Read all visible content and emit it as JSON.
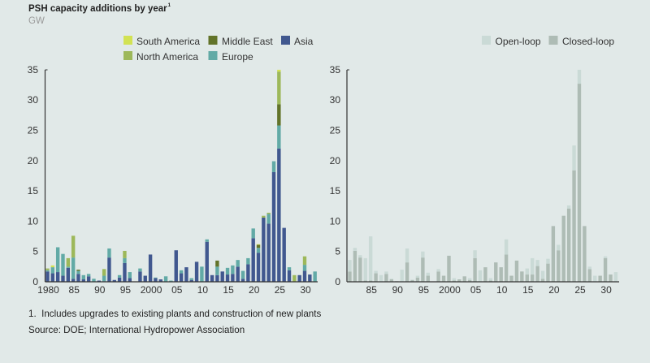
{
  "title_marker": "1",
  "colors": {
    "background": "#e1e9e8",
    "axis": "#333333"
  },
  "notes": {
    "footnote": "1.  Includes upgrades to existing plants and construction of new plants",
    "source": "Source: DOE; International Hydropower Association"
  },
  "chart_data": [
    {
      "type": "bar",
      "stacked": true,
      "title": "PSH capacity additions by year",
      "ylabel": "GW",
      "ylim": [
        0,
        35
      ],
      "yticks": [
        0,
        5,
        10,
        15,
        20,
        25,
        30,
        35
      ],
      "xticks": [
        1980,
        1985,
        1990,
        1995,
        2000,
        2005,
        2010,
        2015,
        2020,
        2025,
        2030
      ],
      "xtick_labels": [
        "1980",
        "85",
        "90",
        "95",
        "2000",
        "05",
        "10",
        "15",
        "20",
        "25",
        "30"
      ],
      "legend_position": "top-right",
      "x": [
        1980,
        1981,
        1982,
        1983,
        1984,
        1985,
        1986,
        1987,
        1988,
        1989,
        1990,
        1991,
        1992,
        1993,
        1994,
        1995,
        1996,
        1997,
        1998,
        1999,
        2000,
        2001,
        2002,
        2003,
        2004,
        2005,
        2006,
        2007,
        2008,
        2009,
        2010,
        2011,
        2012,
        2013,
        2014,
        2015,
        2016,
        2017,
        2018,
        2019,
        2020,
        2021,
        2022,
        2023,
        2024,
        2025,
        2026,
        2027,
        2028,
        2029,
        2030,
        2031,
        2032
      ],
      "series": [
        {
          "name": "Asia",
          "color": "#41588f",
          "values": [
            1.7,
            1.4,
            1.6,
            1.0,
            2.3,
            0.5,
            1.3,
            0.4,
            0.9,
            0,
            0.2,
            0.1,
            4.0,
            0.3,
            0.7,
            3.1,
            0.6,
            0,
            1.7,
            1.0,
            4.5,
            0.6,
            0.4,
            0,
            0,
            5.2,
            1.4,
            2.4,
            0.3,
            3.3,
            0,
            6.6,
            1.1,
            1.1,
            1.7,
            1.2,
            1.3,
            2.5,
            0.5,
            2.9,
            7.2,
            4.8,
            10.6,
            9.6,
            18.1,
            22.0,
            8.9,
            1.9,
            0,
            1.1,
            1.8,
            1.2,
            0
          ]
        },
        {
          "name": "Europe",
          "color": "#62aaa6",
          "values": [
            0.2,
            1.0,
            4.1,
            3.6,
            0.2,
            3.5,
            0.5,
            0.7,
            0.4,
            0.5,
            0,
            0.9,
            1.5,
            0,
            0.4,
            0.8,
            1.0,
            0,
            0.5,
            0,
            0,
            0.1,
            0,
            0.9,
            0.2,
            0,
            0.5,
            0,
            0.3,
            0,
            2.5,
            0.4,
            0,
            1.4,
            0,
            1.1,
            1.4,
            1.1,
            1.3,
            1.0,
            1.6,
            0.8,
            0,
            1.6,
            1.8,
            3.8,
            0,
            0.5,
            0,
            0,
            1.0,
            0,
            1.7
          ]
        },
        {
          "name": "Middle East",
          "color": "#627329",
          "values": [
            0,
            0,
            0,
            0,
            0,
            0,
            0.2,
            0,
            0,
            0,
            0,
            0,
            0,
            0,
            0,
            0,
            0,
            0,
            0,
            0,
            0,
            0,
            0,
            0,
            0,
            0,
            0,
            0,
            0,
            0,
            0,
            0,
            0,
            1.0,
            0,
            0,
            0,
            0,
            0,
            0,
            0,
            0.5,
            0,
            0,
            0,
            3.5,
            0,
            0,
            0,
            0,
            0,
            0,
            0
          ]
        },
        {
          "name": "North America",
          "color": "#9db85a",
          "values": [
            0.3,
            0,
            0,
            0,
            1.4,
            3.6,
            0,
            0,
            0,
            0,
            0,
            1.1,
            0,
            0,
            0,
            1.2,
            0,
            0,
            0,
            0,
            0,
            0,
            0,
            0,
            0,
            0,
            0,
            0,
            0,
            0,
            0,
            0,
            0,
            0,
            0,
            0,
            0,
            0,
            0,
            0,
            0,
            0,
            0.3,
            0.2,
            0,
            5.4,
            0,
            0,
            1.1,
            0,
            1.4,
            0,
            0
          ]
        },
        {
          "name": "South America",
          "color": "#d2e253",
          "values": [
            0,
            0.3,
            0,
            0,
            0,
            0,
            0,
            0,
            0,
            0,
            0,
            0,
            0,
            0,
            0,
            0,
            0,
            0,
            0,
            0,
            0,
            0,
            0,
            0,
            0,
            0,
            0,
            0,
            0,
            0,
            0,
            0,
            0,
            0,
            0,
            0,
            0,
            0,
            0,
            0,
            0,
            0.1,
            0,
            0,
            0,
            0.3,
            0,
            0,
            0,
            0,
            0,
            0,
            0
          ]
        }
      ]
    },
    {
      "type": "bar",
      "stacked": true,
      "ylim": [
        0,
        35
      ],
      "yticks": [
        0,
        5,
        10,
        15,
        20,
        25,
        30,
        35
      ],
      "xticks": [
        1985,
        1990,
        1995,
        2000,
        2005,
        2010,
        2015,
        2020,
        2025,
        2030
      ],
      "xtick_labels": [
        "85",
        "90",
        "95",
        "2000",
        "05",
        "10",
        "15",
        "20",
        "25",
        "30"
      ],
      "legend_position": "top-right",
      "x": [
        1981,
        1982,
        1983,
        1984,
        1985,
        1986,
        1987,
        1988,
        1989,
        1990,
        1991,
        1992,
        1993,
        1994,
        1995,
        1996,
        1997,
        1998,
        1999,
        2000,
        2001,
        2002,
        2003,
        2004,
        2005,
        2006,
        2007,
        2008,
        2009,
        2010,
        2011,
        2012,
        2013,
        2014,
        2015,
        2016,
        2017,
        2018,
        2019,
        2020,
        2021,
        2022,
        2023,
        2024,
        2025,
        2026,
        2027,
        2028,
        2029,
        2030,
        2031,
        2032
      ],
      "series": [
        {
          "name": "Closed-loop",
          "color": "#aebcb5",
          "values": [
            1.7,
            5.1,
            4.0,
            0.2,
            0.2,
            1.4,
            0,
            1.3,
            0.4,
            0.1,
            0,
            3.2,
            0.3,
            0.7,
            4.0,
            1.0,
            0,
            1.7,
            1.0,
            4.3,
            0.2,
            0.4,
            0.9,
            0.3,
            3.9,
            0.1,
            2.4,
            0.2,
            3.2,
            2.4,
            4.5,
            1.0,
            3.5,
            1.7,
            1.2,
            1.2,
            2.6,
            0.5,
            3.0,
            9.2,
            5.2,
            10.9,
            12.1,
            18.4,
            32.7,
            9.2,
            2.1,
            0,
            1.0,
            3.9,
            1.2,
            0
          ]
        },
        {
          "name": "Open-loop",
          "color": "#cadad6",
          "values": [
            1.9,
            0.5,
            0.4,
            3.7,
            7.3,
            0.4,
            1.1,
            0.4,
            0.1,
            0,
            2.0,
            2.3,
            0,
            0.3,
            1.0,
            0.5,
            0,
            0.4,
            0,
            0,
            0.4,
            0,
            0,
            0.3,
            1.3,
            1.8,
            0,
            0.4,
            0,
            0,
            2.5,
            0,
            0,
            0,
            1.0,
            2.7,
            1.0,
            1.3,
            0.8,
            0,
            0.9,
            0,
            0.5,
            4.1,
            2.3,
            0,
            0.4,
            1.0,
            0,
            0.3,
            0,
            1.6
          ]
        }
      ]
    }
  ]
}
